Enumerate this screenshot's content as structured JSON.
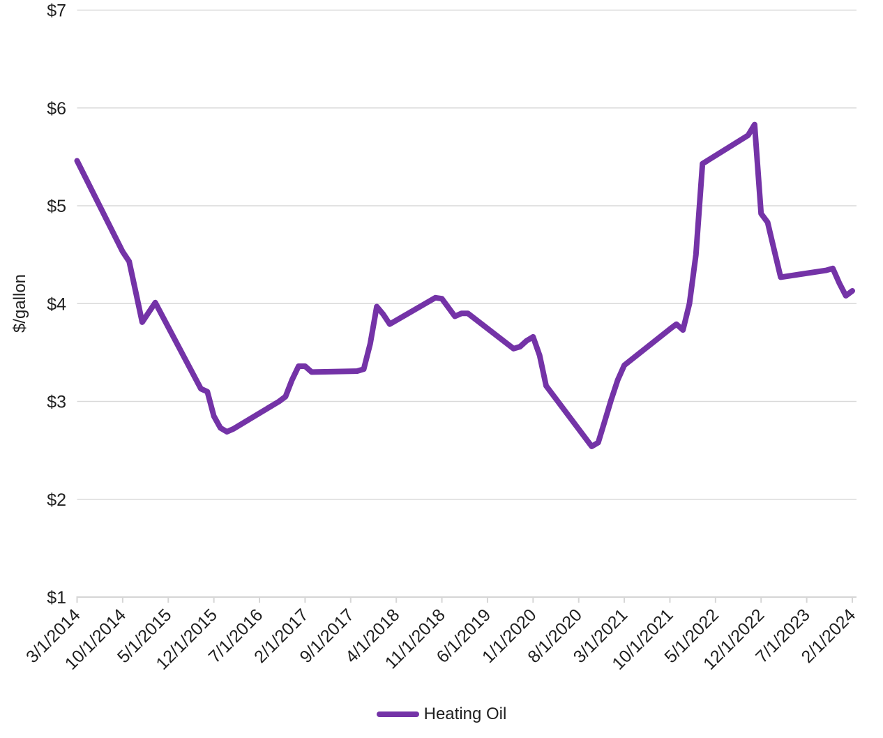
{
  "colors": {
    "line": "#7433a7",
    "grid": "#d9d9d9",
    "axis": "#d6d6d6",
    "text": "#1f1f1f"
  },
  "chart_data": {
    "type": "line",
    "title": "",
    "xlabel": "",
    "ylabel": "$/gallon",
    "ylim": [
      1,
      7
    ],
    "grid": "horizontal",
    "legend_position": "bottom-center",
    "y_tick_labels": [
      "$1",
      "$2",
      "$3",
      "$4",
      "$5",
      "$6",
      "$7"
    ],
    "x_tick_labels": [
      "3/1/2014",
      "10/1/2014",
      "5/1/2015",
      "12/1/2015",
      "7/1/2016",
      "2/1/2017",
      "9/1/2017",
      "4/1/2018",
      "11/1/2018",
      "6/1/2019",
      "1/1/2020",
      "8/1/2020",
      "3/1/2021",
      "10/1/2021",
      "5/1/2022",
      "12/1/2022",
      "7/1/2023",
      "2/1/2024"
    ],
    "series": [
      {
        "name": "Heating Oil",
        "color": "#7433a7",
        "points": [
          {
            "date": "3/1/2014",
            "value": 5.46
          },
          {
            "date": "10/1/2014",
            "value": 4.53
          },
          {
            "date": "11/1/2014",
            "value": 4.43
          },
          {
            "date": "12/1/2014",
            "value": 4.12
          },
          {
            "date": "1/1/2015",
            "value": 3.81
          },
          {
            "date": "2/1/2015",
            "value": 3.91
          },
          {
            "date": "3/1/2015",
            "value": 4.01
          },
          {
            "date": "10/1/2015",
            "value": 3.13
          },
          {
            "date": "11/1/2015",
            "value": 3.1
          },
          {
            "date": "12/1/2015",
            "value": 2.85
          },
          {
            "date": "1/1/2016",
            "value": 2.73
          },
          {
            "date": "2/1/2016",
            "value": 2.69
          },
          {
            "date": "3/1/2016",
            "value": 2.72
          },
          {
            "date": "10/1/2016",
            "value": 3.0
          },
          {
            "date": "11/1/2016",
            "value": 3.05
          },
          {
            "date": "12/1/2016",
            "value": 3.22
          },
          {
            "date": "1/1/2017",
            "value": 3.36
          },
          {
            "date": "2/1/2017",
            "value": 3.36
          },
          {
            "date": "3/1/2017",
            "value": 3.3
          },
          {
            "date": "10/1/2017",
            "value": 3.31
          },
          {
            "date": "11/1/2017",
            "value": 3.33
          },
          {
            "date": "12/1/2017",
            "value": 3.59
          },
          {
            "date": "1/1/2018",
            "value": 3.97
          },
          {
            "date": "2/1/2018",
            "value": 3.89
          },
          {
            "date": "3/1/2018",
            "value": 3.79
          },
          {
            "date": "10/1/2018",
            "value": 4.06
          },
          {
            "date": "11/1/2018",
            "value": 4.05
          },
          {
            "date": "12/1/2018",
            "value": 3.96
          },
          {
            "date": "1/1/2019",
            "value": 3.87
          },
          {
            "date": "2/1/2019",
            "value": 3.9
          },
          {
            "date": "3/1/2019",
            "value": 3.9
          },
          {
            "date": "10/1/2019",
            "value": 3.54
          },
          {
            "date": "11/1/2019",
            "value": 3.56
          },
          {
            "date": "12/1/2019",
            "value": 3.62
          },
          {
            "date": "1/1/2020",
            "value": 3.66
          },
          {
            "date": "2/1/2020",
            "value": 3.47
          },
          {
            "date": "3/1/2020",
            "value": 3.16
          },
          {
            "date": "10/1/2020",
            "value": 2.54
          },
          {
            "date": "11/1/2020",
            "value": 2.58
          },
          {
            "date": "12/1/2020",
            "value": 2.8
          },
          {
            "date": "1/1/2021",
            "value": 3.02
          },
          {
            "date": "2/1/2021",
            "value": 3.22
          },
          {
            "date": "3/1/2021",
            "value": 3.37
          },
          {
            "date": "10/1/2021",
            "value": 3.74
          },
          {
            "date": "11/1/2021",
            "value": 3.79
          },
          {
            "date": "12/1/2021",
            "value": 3.73
          },
          {
            "date": "1/1/2022",
            "value": 4.0
          },
          {
            "date": "2/1/2022",
            "value": 4.5
          },
          {
            "date": "3/1/2022",
            "value": 5.43
          },
          {
            "date": "10/1/2022",
            "value": 5.72
          },
          {
            "date": "11/1/2022",
            "value": 5.83
          },
          {
            "date": "12/1/2022",
            "value": 4.92
          },
          {
            "date": "1/1/2023",
            "value": 4.83
          },
          {
            "date": "2/1/2023",
            "value": 4.55
          },
          {
            "date": "3/1/2023",
            "value": 4.27
          },
          {
            "date": "10/1/2023",
            "value": 4.34
          },
          {
            "date": "11/1/2023",
            "value": 4.36
          },
          {
            "date": "12/1/2023",
            "value": 4.21
          },
          {
            "date": "1/1/2024",
            "value": 4.08
          },
          {
            "date": "2/1/2024",
            "value": 4.13
          }
        ]
      }
    ]
  }
}
